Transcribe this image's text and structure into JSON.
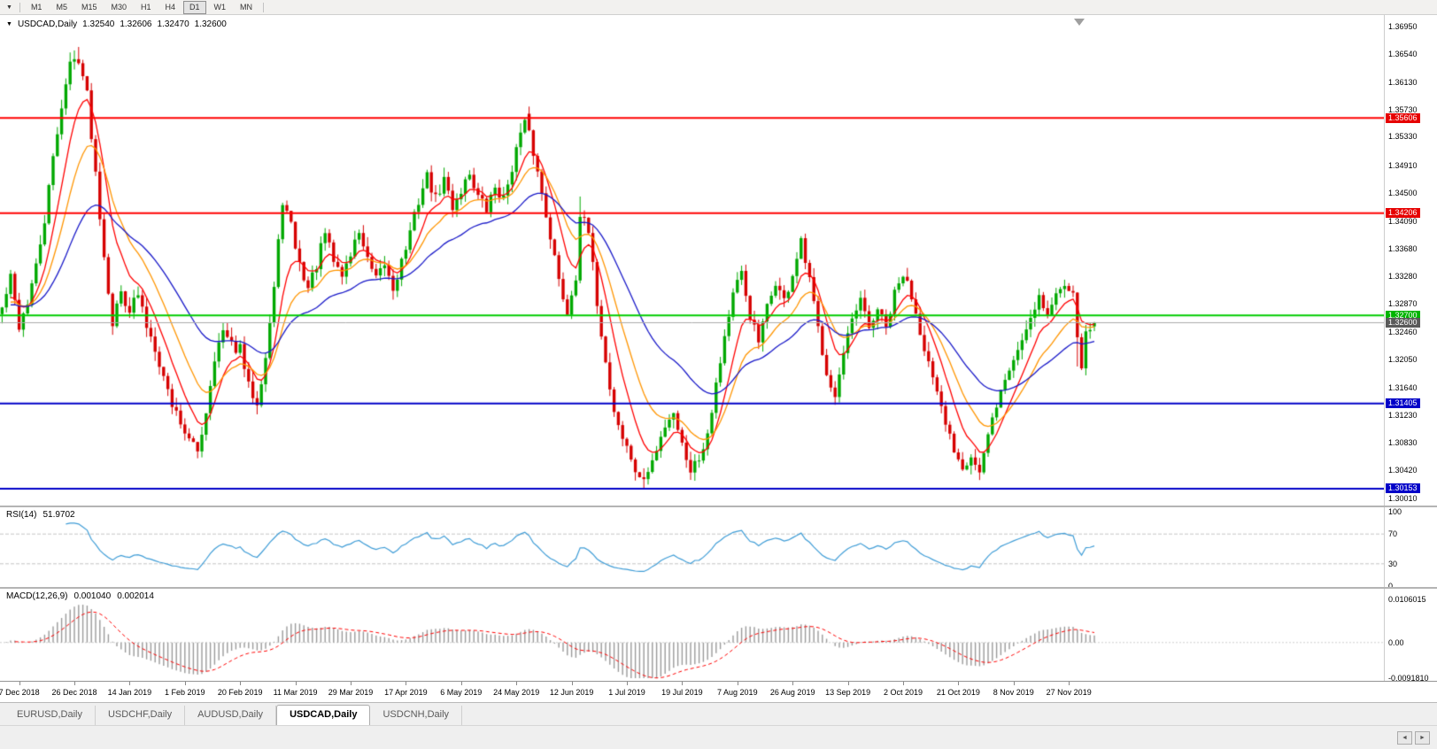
{
  "toolbar": {
    "dropdown_icon": "▼",
    "timeframes": [
      "M1",
      "M5",
      "M15",
      "M30",
      "H1",
      "H4",
      "D1",
      "W1",
      "MN"
    ],
    "active_timeframe": "D1"
  },
  "chart": {
    "header": {
      "expander_icon": "▼",
      "symbol": "USDCAD,Daily",
      "open": "1.32540",
      "high": "1.32606",
      "low": "1.32470",
      "close": "1.32600"
    }
  },
  "rsi_panel": {
    "name": "RSI(14)",
    "value": "51.9702",
    "axis_ticks": [
      "100",
      "70",
      "30",
      "0"
    ],
    "levels": [
      70,
      30
    ]
  },
  "macd_panel": {
    "name": "MACD(12,26,9)",
    "value1": "0.001040",
    "value2": "0.002014",
    "axis_ticks": [
      "0.0106015",
      "0.00",
      "-0.0091810"
    ]
  },
  "tab_bar": {
    "tabs": [
      {
        "label": "EURUSD,Daily",
        "active": false
      },
      {
        "label": "USDCHF,Daily",
        "active": false
      },
      {
        "label": "AUDUSD,Daily",
        "active": false
      },
      {
        "label": "USDCAD,Daily",
        "active": true
      },
      {
        "label": "USDCNH,Daily",
        "active": false
      }
    ]
  },
  "scrollbar": {
    "left_arrow": "◄",
    "right_arrow": "►"
  },
  "chart_data": {
    "type": "candlestick",
    "symbol": "USDCAD",
    "timeframe": "Daily",
    "title": "USDCAD,Daily 1.32540 1.32606 1.32470 1.32600",
    "y_tick_labels": [
      "1.36950",
      "1.36540",
      "1.36130",
      "1.35730",
      "1.35330",
      "1.34910",
      "1.34500",
      "1.34090",
      "1.33680",
      "1.33280",
      "1.32870",
      "1.32460",
      "1.32050",
      "1.31640",
      "1.31230",
      "1.30830",
      "1.30420",
      "1.30010"
    ],
    "x_tick_labels": [
      "7 Dec 2018",
      "26 Dec 2018",
      "14 Jan 2019",
      "1 Feb 2019",
      "20 Feb 2019",
      "11 Mar 2019",
      "29 Mar 2019",
      "17 Apr 2019",
      "6 May 2019",
      "24 May 2019",
      "12 Jun 2019",
      "1 Jul 2019",
      "19 Jul 2019",
      "7 Aug 2019",
      "26 Aug 2019",
      "13 Sep 2019",
      "2 Oct 2019",
      "21 Oct 2019",
      "8 Nov 2019",
      "27 Nov 2019"
    ],
    "ylim": [
      1.29905,
      1.37119
    ],
    "current_price": 1.326,
    "current_price_tag": {
      "value": 1.326,
      "label": "1.32600",
      "label_bg": "#5a5a5a",
      "line_color": "#ababab"
    },
    "last_candle": {
      "open": 1.3254,
      "high": 1.32606,
      "low": 1.3247,
      "close": 1.326
    },
    "horizontal_lines": [
      {
        "value": 1.35606,
        "label": "1.35606",
        "color": "#ff0000",
        "label_bg": "#e60000"
      },
      {
        "value": 1.34206,
        "label": "1.34206",
        "color": "#ff0000",
        "label_bg": "#e60000"
      },
      {
        "value": 1.327,
        "label": "1.32700",
        "color": "#00cc00",
        "label_bg": "#00b400"
      },
      {
        "value": 1.31405,
        "label": "1.31405",
        "color": "#0000c8",
        "label_bg": "#0000c8"
      },
      {
        "value": 1.30153,
        "label": "1.30153",
        "color": "#0000c8",
        "label_bg": "#0000c8"
      }
    ],
    "moving_averages": [
      {
        "method": "ema",
        "period": 8,
        "color": "#ff0000"
      },
      {
        "method": "ema",
        "period": 16,
        "color": "#ff9500"
      },
      {
        "method": "ema",
        "period": 36,
        "color": "#1919c8"
      }
    ],
    "indicators": [
      {
        "name": "RSI",
        "period": 14,
        "last": 51.9702,
        "levels": [
          70,
          30
        ],
        "line_color": "#3e9cd6",
        "range": [
          0,
          100
        ]
      },
      {
        "name": "MACD",
        "fast": 12,
        "slow": 26,
        "signal": 9,
        "last_macd": 0.00104,
        "last_signal": 0.002014,
        "histogram_color": "#9a9a9a",
        "signal_color": "#ff0000",
        "range": [
          -0.009181,
          0.0106015
        ]
      }
    ],
    "candle_up_color": "#00a800",
    "candle_down_color": "#d60000",
    "n_candles": 258,
    "close_anchors": [
      [
        0,
        1.328
      ],
      [
        2,
        1.3325
      ],
      [
        4,
        1.3255
      ],
      [
        6,
        1.329
      ],
      [
        8,
        1.334
      ],
      [
        10,
        1.341
      ],
      [
        12,
        1.35
      ],
      [
        14,
        1.358
      ],
      [
        16,
        1.364
      ],
      [
        18,
        1.365
      ],
      [
        20,
        1.3595
      ],
      [
        22,
        1.348
      ],
      [
        24,
        1.336
      ],
      [
        26,
        1.326
      ],
      [
        28,
        1.3305
      ],
      [
        30,
        1.328
      ],
      [
        32,
        1.33
      ],
      [
        34,
        1.3255
      ],
      [
        36,
        1.3225
      ],
      [
        38,
        1.318
      ],
      [
        40,
        1.314
      ],
      [
        42,
        1.3115
      ],
      [
        44,
        1.3085
      ],
      [
        46,
        1.307
      ],
      [
        48,
        1.313
      ],
      [
        50,
        1.321
      ],
      [
        52,
        1.3245
      ],
      [
        54,
        1.3225
      ],
      [
        56,
        1.322
      ],
      [
        58,
        1.3165
      ],
      [
        60,
        1.3145
      ],
      [
        62,
        1.321
      ],
      [
        64,
        1.331
      ],
      [
        66,
        1.344
      ],
      [
        68,
        1.34
      ],
      [
        70,
        1.3345
      ],
      [
        72,
        1.331
      ],
      [
        74,
        1.3345
      ],
      [
        76,
        1.339
      ],
      [
        78,
        1.335
      ],
      [
        80,
        1.333
      ],
      [
        82,
        1.336
      ],
      [
        84,
        1.3395
      ],
      [
        86,
        1.335
      ],
      [
        88,
        1.332
      ],
      [
        90,
        1.3345
      ],
      [
        92,
        1.331
      ],
      [
        94,
        1.335
      ],
      [
        96,
        1.339
      ],
      [
        98,
        1.344
      ],
      [
        100,
        1.3475
      ],
      [
        102,
        1.344
      ],
      [
        104,
        1.347
      ],
      [
        106,
        1.343
      ],
      [
        108,
        1.3455
      ],
      [
        110,
        1.348
      ],
      [
        112,
        1.3445
      ],
      [
        114,
        1.3425
      ],
      [
        116,
        1.346
      ],
      [
        118,
        1.344
      ],
      [
        120,
        1.349
      ],
      [
        123,
        1.356
      ],
      [
        125,
        1.351
      ],
      [
        127,
        1.345
      ],
      [
        129,
        1.339
      ],
      [
        131,
        1.332
      ],
      [
        133,
        1.3275
      ],
      [
        135,
        1.333
      ],
      [
        136,
        1.342
      ],
      [
        138,
        1.339
      ],
      [
        140,
        1.329
      ],
      [
        142,
        1.32
      ],
      [
        144,
        1.313
      ],
      [
        146,
        1.309
      ],
      [
        148,
        1.306
      ],
      [
        150,
        1.3025
      ],
      [
        152,
        1.304
      ],
      [
        154,
        1.307
      ],
      [
        156,
        1.311
      ],
      [
        158,
        1.313
      ],
      [
        160,
        1.308
      ],
      [
        162,
        1.3045
      ],
      [
        164,
        1.306
      ],
      [
        166,
        1.31
      ],
      [
        168,
        1.317
      ],
      [
        170,
        1.324
      ],
      [
        172,
        1.33
      ],
      [
        174,
        1.333
      ],
      [
        176,
        1.327
      ],
      [
        178,
        1.323
      ],
      [
        180,
        1.328
      ],
      [
        182,
        1.332
      ],
      [
        184,
        1.329
      ],
      [
        186,
        1.333
      ],
      [
        188,
        1.3375
      ],
      [
        190,
        1.332
      ],
      [
        192,
        1.325
      ],
      [
        194,
        1.319
      ],
      [
        196,
        1.315
      ],
      [
        198,
        1.321
      ],
      [
        200,
        1.326
      ],
      [
        202,
        1.329
      ],
      [
        204,
        1.325
      ],
      [
        206,
        1.328
      ],
      [
        208,
        1.325
      ],
      [
        210,
        1.33
      ],
      [
        212,
        1.333
      ],
      [
        214,
        1.33
      ],
      [
        216,
        1.325
      ],
      [
        218,
        1.32
      ],
      [
        220,
        1.315
      ],
      [
        222,
        1.311
      ],
      [
        224,
        1.3075
      ],
      [
        226,
        1.305
      ],
      [
        228,
        1.3065
      ],
      [
        230,
        1.3038
      ],
      [
        232,
        1.309
      ],
      [
        234,
        1.314
      ],
      [
        236,
        1.3175
      ],
      [
        238,
        1.3205
      ],
      [
        240,
        1.3235
      ],
      [
        242,
        1.327
      ],
      [
        244,
        1.33
      ],
      [
        246,
        1.327
      ],
      [
        248,
        1.33
      ],
      [
        250,
        1.332
      ],
      [
        252,
        1.331
      ],
      [
        253,
        1.323
      ],
      [
        254,
        1.32
      ],
      [
        255,
        1.324
      ],
      [
        256,
        1.325
      ],
      [
        257,
        1.326
      ]
    ],
    "wick_overrides": [
      [
        18,
        1.3665,
        null
      ],
      [
        46,
        null,
        1.306
      ],
      [
        123,
        1.35606,
        null
      ],
      [
        136,
        1.3445,
        null
      ],
      [
        151,
        null,
        1.30153
      ],
      [
        230,
        null,
        1.3028
      ],
      [
        253,
        null,
        1.3195
      ]
    ]
  }
}
